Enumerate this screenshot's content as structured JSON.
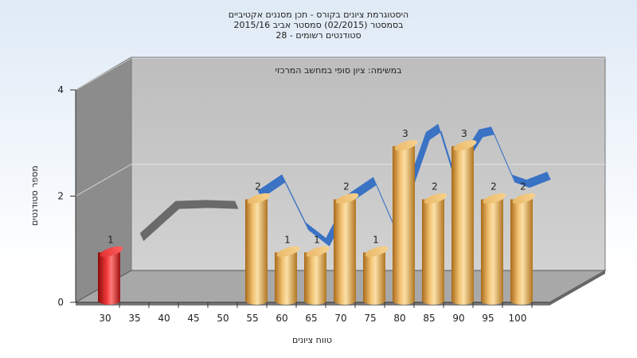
{
  "chart_data": {
    "type": "bar",
    "title_lines": [
      "היסטוגרמת ציונים בקורס - תכן מסננים אקטיביים",
      "בסמסטר  (02/2015)  סמסטר אביב 2015/16",
      "28 - סטודנטים רשומים"
    ],
    "annotation": "במשימה: ציון סופי במחשב המרכזי",
    "xlabel": "טווח ציונים",
    "ylabel": "מספר סטודנטים",
    "x_ticks": [
      "30",
      "35",
      "40",
      "45",
      "50",
      "55",
      "60",
      "65",
      "70",
      "75",
      "80",
      "85",
      "90",
      "95",
      "100"
    ],
    "y_ticks": [
      "0",
      "2",
      "4"
    ],
    "ylim": [
      0,
      4
    ],
    "bars": [
      {
        "x": "30",
        "value": 1,
        "label": "1",
        "color": "#e41a1c"
      },
      {
        "x": "55",
        "value": 2,
        "label": "2",
        "color": "#f0b050"
      },
      {
        "x": "60",
        "value": 1,
        "label": "1",
        "color": "#f0b050"
      },
      {
        "x": "65",
        "value": 1,
        "label": "1",
        "color": "#f0b050"
      },
      {
        "x": "70",
        "value": 2,
        "label": "2",
        "color": "#f0b050"
      },
      {
        "x": "75",
        "value": 1,
        "label": "1",
        "color": "#f0b050"
      },
      {
        "x": "80",
        "value": 3,
        "label": "3",
        "color": "#f0b050"
      },
      {
        "x": "85",
        "value": 2,
        "label": "2",
        "color": "#f0b050"
      },
      {
        "x": "90",
        "value": 3,
        "label": "3",
        "color": "#f0b050"
      },
      {
        "x": "95",
        "value": 2,
        "label": "2",
        "color": "#f0b050"
      },
      {
        "x": "100",
        "value": 2,
        "label": "2",
        "color": "#f0b050"
      }
    ],
    "curve": [
      {
        "x": 36,
        "y": 1.3
      },
      {
        "x": 42,
        "y": 1.9
      },
      {
        "x": 47,
        "y": 1.92
      },
      {
        "x": 52,
        "y": 1.9
      },
      {
        "x": 56,
        "y": 2.1
      },
      {
        "x": 60,
        "y": 2.4
      },
      {
        "x": 64,
        "y": 1.5
      },
      {
        "x": 67.5,
        "y": 1.2
      },
      {
        "x": 71.5,
        "y": 2.05
      },
      {
        "x": 75.5,
        "y": 2.35
      },
      {
        "x": 79,
        "y": 1.45
      },
      {
        "x": 84.5,
        "y": 3.2
      },
      {
        "x": 86.5,
        "y": 3.35
      },
      {
        "x": 89,
        "y": 2.45
      },
      {
        "x": 93.5,
        "y": 3.25
      },
      {
        "x": 95.5,
        "y": 3.3
      },
      {
        "x": 99,
        "y": 2.4
      },
      {
        "x": 101.5,
        "y": 2.3
      },
      {
        "x": 105,
        "y": 2.45
      }
    ],
    "curve_color_front": "#3a72c4",
    "curve_color_back": "#6a6a6a",
    "grid": true,
    "background": "#c6c6c6"
  }
}
